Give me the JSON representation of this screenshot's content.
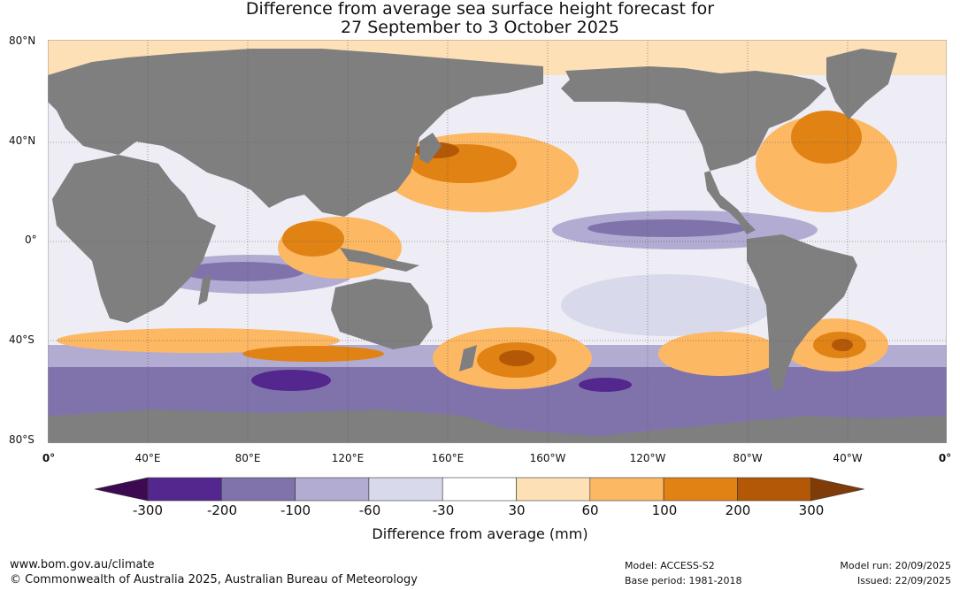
{
  "title": {
    "line1": "Difference from average sea surface height forecast for",
    "line2": "27 September to 3 October 2025"
  },
  "axes": {
    "latitudes": [
      "80°N",
      "40°N",
      "0°",
      "40°S",
      "80°S"
    ],
    "longitudes": [
      "0°",
      "40°E",
      "80°E",
      "120°E",
      "160°E",
      "160°W",
      "120°W",
      "80°W",
      "40°W",
      "0°"
    ]
  },
  "colorbar": {
    "label": "Difference from average (mm)",
    "ticks": [
      "-300",
      "-200",
      "-100",
      "-60",
      "-30",
      "30",
      "60",
      "100",
      "200",
      "300"
    ],
    "colors": [
      "#3d0a52",
      "#54278f",
      "#8073ac",
      "#b2abd2",
      "#d8daeb",
      "#ffffff",
      "#fee0b6",
      "#fdb863",
      "#e08214",
      "#b35806",
      "#7f3b08"
    ]
  },
  "colors": {
    "land": "#7f7f7f",
    "grid": "#555555"
  },
  "footer": {
    "website": "www.bom.gov.au/climate",
    "copyright": "© Commonwealth of Australia 2025, Australian Bureau of Meteorology",
    "model": "Model: ACCESS-S2",
    "base_period": "Base period: 1981-2018",
    "model_run": "Model run: 20/09/2025",
    "issued": "Issued: 22/09/2025"
  }
}
